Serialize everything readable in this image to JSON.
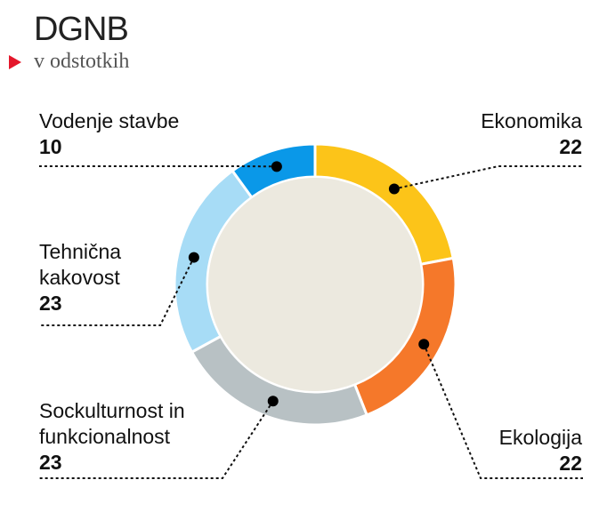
{
  "header": {
    "title": "DGNB",
    "subtitle": "v odstotkih"
  },
  "chart_data": {
    "type": "pie",
    "title": "DGNB",
    "subtitle": "v odstotkih",
    "categories": [
      "Ekonomika",
      "Ekologija",
      "Sockulturnost in funkcionalnost",
      "Tehnična kakovost",
      "Vodenje stavbe"
    ],
    "values": [
      22,
      22,
      23,
      23,
      10
    ],
    "value_labels": [
      "22",
      "22",
      "23",
      "23",
      "10"
    ],
    "colors": [
      "#fcc419",
      "#f5782a",
      "#b8c1c4",
      "#a7dcf6",
      "#0a98e8"
    ],
    "center_color": "#ece9df",
    "label_lines": [
      "Ekonomika",
      "Ekologija",
      "Sockulturnost in\nfunkcionalnost",
      "Tehnična\nkakovost",
      "Vodenje stavbe"
    ]
  }
}
